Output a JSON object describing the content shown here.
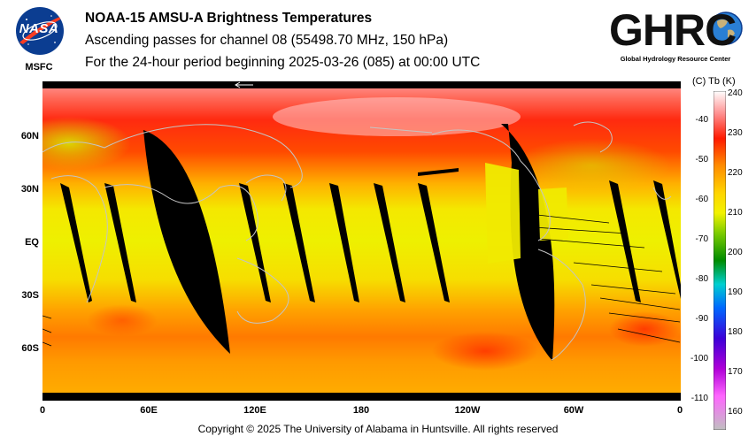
{
  "header": {
    "line1": "NOAA-15 AMSU-A Brightness Temperatures",
    "line2": "Ascending passes for channel 08 (55498.70 MHz, 150 hPa)",
    "line3": "For the 24-hour period beginning 2025-03-26 (085) at 00:00 UTC"
  },
  "logos": {
    "left_wordmark": "NASA",
    "left_org": "MSFC",
    "right_wordmark": "GHRC",
    "right_subtitle": "Global Hydrology Resource Center"
  },
  "map": {
    "projection": "equirectangular",
    "lat_labels": [
      "60N",
      "30N",
      "EQ",
      "30S",
      "60S"
    ],
    "lon_labels": [
      "0",
      "60E",
      "120E",
      "180",
      "120W",
      "60W",
      "0"
    ],
    "no_data_color": "#000000",
    "coastline_color": "#b8b8b8"
  },
  "colorbar": {
    "header": "(C)  Tb  (K)",
    "celsius_ticks": [
      "-40",
      "-50",
      "-60",
      "-70",
      "-80",
      "-90",
      "-100",
      "-110"
    ],
    "kelvin_ticks": [
      "240",
      "230",
      "220",
      "210",
      "200",
      "190",
      "180",
      "170",
      "160"
    ],
    "kelvin_range": [
      155,
      240
    ],
    "colors_hot_to_cold": [
      "#ffffff",
      "#ff8a8a",
      "#ff1a00",
      "#ff8c00",
      "#ffd400",
      "#f2f200",
      "#7ccc00",
      "#008c00",
      "#00d0d0",
      "#0068ff",
      "#3c00d8",
      "#b000d8",
      "#ff66ff",
      "#c0c0c0"
    ]
  },
  "footer": {
    "copyright": "Copyright © 2025 The University of Alabama in Huntsville.  All rights reserved"
  }
}
